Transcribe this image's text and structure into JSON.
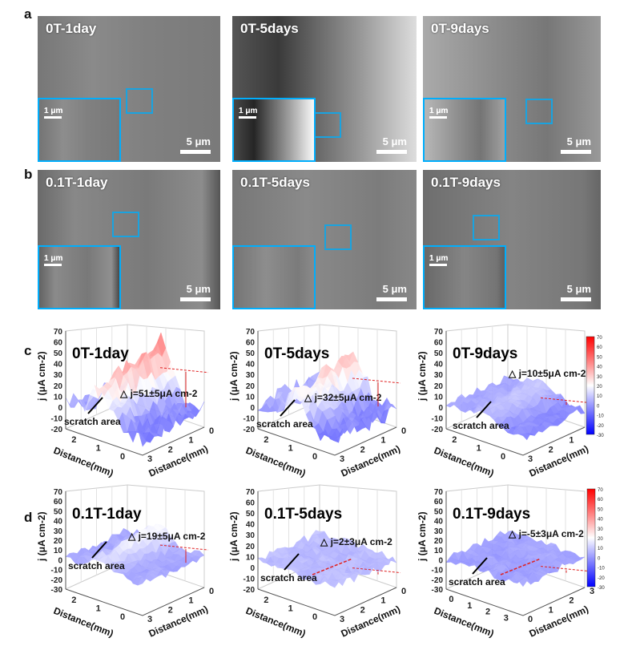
{
  "panel_labels": {
    "a": "a",
    "b": "b",
    "c": "c",
    "d": "d"
  },
  "sem_rows": [
    {
      "images": [
        {
          "title": "0T-1day",
          "scale_inset": "1 μm",
          "scale_main": "5 μm"
        },
        {
          "title": "0T-5days",
          "scale_inset": "1 μm",
          "scale_main": "5 μm"
        },
        {
          "title": "0T-9days",
          "scale_inset": "1 μm",
          "scale_main": "5 μm"
        }
      ]
    },
    {
      "images": [
        {
          "title": "0.1T-1day",
          "scale_inset": "1 μm",
          "scale_main": "5 μm"
        },
        {
          "title": "0.1T-5days",
          "scale_inset": "",
          "scale_main": "5 μm"
        },
        {
          "title": "0.1T-9days",
          "scale_inset": "1 μm",
          "scale_main": "5 μm"
        }
      ]
    }
  ],
  "chart_data": [
    {
      "type": "surface",
      "title": "0T-1day",
      "delta_label": "△ j=51±5μA cm-2",
      "delta_value": "51±5",
      "scratch_label": "scratch area",
      "zlabel": "j (μA cm-2)",
      "xlabel": "Distance(mm)",
      "ylabel": "Distance(mm)",
      "zticks": [
        70,
        60,
        50,
        40,
        30,
        20,
        10,
        0,
        -10,
        -20
      ],
      "xticks": [
        2,
        1,
        0
      ],
      "yticks": [
        0,
        1,
        2,
        3
      ],
      "zlim": [
        -20,
        70
      ],
      "peak": 45
    },
    {
      "type": "surface",
      "title": "0T-5days",
      "delta_label": "△ j=32±5μA cm-2",
      "delta_value": "32±5",
      "scratch_label": "scratch area",
      "zlabel": "j (μA cm-2)",
      "xlabel": "Distance(mm)",
      "ylabel": "Distance(mm)",
      "zticks": [
        70,
        60,
        50,
        40,
        30,
        20,
        10,
        0,
        -10,
        -20
      ],
      "xticks": [
        2,
        1,
        0
      ],
      "yticks": [
        0,
        1,
        2,
        3
      ],
      "zlim": [
        -20,
        70
      ],
      "peak": 32
    },
    {
      "type": "surface",
      "title": "0T-9days",
      "delta_label": "△ j=10±5μA cm-2",
      "delta_value": "10±5",
      "scratch_label": "scratch area",
      "zlabel": "j (μA cm-2)",
      "xlabel": "Distance(mm)",
      "ylabel": "Distance(mm)",
      "zticks": [
        70,
        60,
        50,
        40,
        30,
        20,
        10,
        0,
        -10,
        -20
      ],
      "xticks": [
        2,
        1,
        0
      ],
      "yticks": [
        0,
        1,
        2,
        3
      ],
      "zlim": [
        -20,
        70
      ],
      "peak": 8
    },
    {
      "type": "surface",
      "title": "0.1T-1day",
      "delta_label": "△ j=19±5μA cm-2",
      "delta_value": "19±5",
      "scratch_label": "scratch area",
      "zlabel": "j (μA cm-2)",
      "xlabel": "Distance(mm)",
      "ylabel": "Distance(mm)",
      "zticks": [
        70,
        60,
        50,
        40,
        30,
        20,
        10,
        0,
        -10,
        -20,
        -30
      ],
      "xticks": [
        2,
        1,
        0
      ],
      "yticks": [
        0,
        1,
        2,
        3
      ],
      "zlim": [
        -30,
        70
      ],
      "peak": 20
    },
    {
      "type": "surface",
      "title": "0.1T-5days",
      "delta_label": "△ j=2±3μA cm-2",
      "delta_value": "2±3",
      "scratch_label": "scratch area",
      "zlabel": "j (μA cm-2)",
      "xlabel": "Distance(mm)",
      "ylabel": "Distance(mm)",
      "zticks": [
        70,
        60,
        50,
        40,
        30,
        20,
        10,
        0,
        -10,
        -20
      ],
      "xticks": [
        2,
        1,
        0
      ],
      "yticks": [
        0,
        1,
        2,
        3
      ],
      "zlim": [
        -20,
        70
      ],
      "peak": 2
    },
    {
      "type": "surface",
      "title": "0.1T-9days",
      "delta_label": "△ j=-5±3μA cm-2",
      "delta_value": "-5±3",
      "scratch_label": "scratch area",
      "zlabel": "j (μA cm-2)",
      "xlabel": "Distance(mm)",
      "ylabel": "Distance(mm)",
      "zticks": [
        70,
        60,
        50,
        40,
        30,
        20,
        10,
        0,
        -10,
        -20,
        -30
      ],
      "xticks": [
        0,
        1,
        2,
        3
      ],
      "yticks": [
        3,
        2,
        1,
        0
      ],
      "zlim": [
        -30,
        70
      ],
      "peak": -3
    }
  ],
  "colorbar": {
    "ticks": [
      70,
      60,
      50,
      40,
      30,
      20,
      10,
      0,
      -10,
      -20,
      -30
    ],
    "colors": {
      "high": "#ff0000",
      "mid": "#ffffff",
      "low": "#0000ff"
    }
  },
  "colors": {
    "inset_border": "#19a3e0",
    "annotation": "#e02020"
  }
}
